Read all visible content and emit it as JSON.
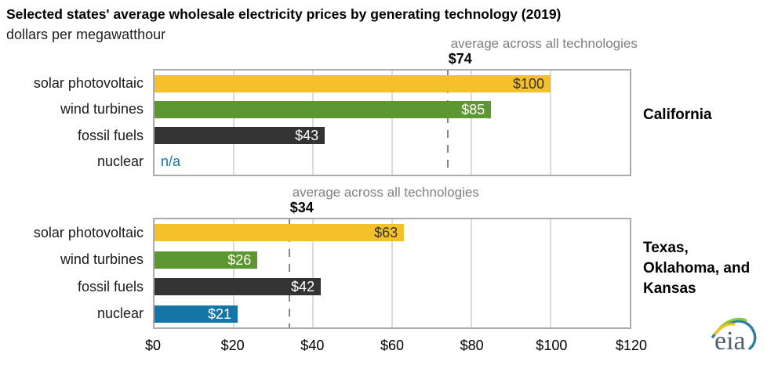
{
  "page": {
    "title": "Selected states' average wholesale electricity prices by generating technology (2019)",
    "subtitle": "dollars per megawatthour",
    "logo_text": "eia"
  },
  "colors": {
    "solar": "#F5C12B",
    "wind": "#5D9732",
    "fossil": "#333333",
    "nuclear": "#1476A7",
    "gridline": "#DBDBDB",
    "plot_border": "#ABABAB",
    "average_line": "#858585",
    "caption_gray": "#7F7F7F"
  },
  "chart_data": {
    "type": "bar",
    "orientation": "horizontal",
    "title": "Selected states' average wholesale electricity prices by generating technology (2019)",
    "units": "dollars per megawatthour",
    "categories": [
      "solar photovoltaic",
      "wind turbines",
      "fossil fuels",
      "nuclear"
    ],
    "xlim": [
      0,
      120
    ],
    "x_tick_values": [
      0,
      20,
      40,
      60,
      80,
      100,
      120
    ],
    "x_tick_labels": [
      "$0",
      "$20",
      "$40",
      "$60",
      "$80",
      "$100",
      "$120"
    ],
    "grid": "vertical gridlines every $20",
    "legend": "none",
    "bar_colors": [
      "#F5C12B",
      "#5D9732",
      "#333333",
      "#1476A7"
    ],
    "bar_label_colors": [
      "#333333",
      "#FFFFFF",
      "#FFFFFF",
      "#FFFFFF"
    ],
    "na_color": "#1476A7",
    "panels": [
      {
        "state": "California",
        "values": [
          100,
          85,
          43,
          null
        ],
        "value_labels": [
          "$100",
          "$85",
          "$43",
          "n/a"
        ],
        "average": 74,
        "average_value_label": "$74",
        "average_caption": "average across all technologies"
      },
      {
        "state": "Texas, Oklahoma, and Kansas",
        "values": [
          63,
          26,
          42,
          21
        ],
        "value_labels": [
          "$63",
          "$26",
          "$42",
          "$21"
        ],
        "average": 34,
        "average_value_label": "$34",
        "average_caption": "average across all technologies"
      }
    ]
  }
}
